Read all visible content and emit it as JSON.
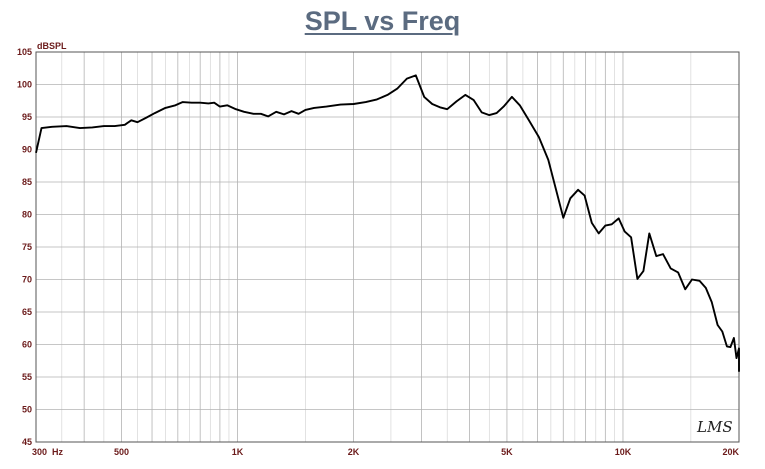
{
  "chart_data": {
    "type": "line",
    "title": "SPL vs Freq",
    "ylabel": "dBSPL",
    "xlabel": "",
    "x_scale": "log",
    "xlim": [
      300,
      20000
    ],
    "ylim": [
      45,
      105
    ],
    "grid": true,
    "x_tick_labels": [
      {
        "value": 300,
        "label": "300"
      },
      {
        "value": 500,
        "label": "500"
      },
      {
        "value": 1000,
        "label": "1K"
      },
      {
        "value": 2000,
        "label": "2K"
      },
      {
        "value": 5000,
        "label": "5K"
      },
      {
        "value": 10000,
        "label": "10K"
      },
      {
        "value": 20000,
        "label": "20K"
      }
    ],
    "x_unit": "Hz",
    "y_ticks": [
      45,
      50,
      55,
      60,
      65,
      70,
      75,
      80,
      85,
      90,
      95,
      100,
      105
    ],
    "watermark": "LMS",
    "colors": {
      "line": "#000000",
      "title": "#5b6b80",
      "tick_text": "#6b1a1a",
      "grid": "#b3b3b3",
      "frame": "#555555"
    },
    "series": [
      {
        "name": "",
        "points": [
          [
            300,
            89.5
          ],
          [
            310,
            93.3
          ],
          [
            330,
            93.5
          ],
          [
            360,
            93.6
          ],
          [
            390,
            93.3
          ],
          [
            420,
            93.4
          ],
          [
            450,
            93.6
          ],
          [
            480,
            93.6
          ],
          [
            510,
            93.8
          ],
          [
            530,
            94.5
          ],
          [
            550,
            94.2
          ],
          [
            580,
            94.9
          ],
          [
            610,
            95.6
          ],
          [
            650,
            96.4
          ],
          [
            690,
            96.8
          ],
          [
            720,
            97.3
          ],
          [
            760,
            97.2
          ],
          [
            800,
            97.2
          ],
          [
            840,
            97.1
          ],
          [
            870,
            97.2
          ],
          [
            900,
            96.6
          ],
          [
            940,
            96.8
          ],
          [
            990,
            96.2
          ],
          [
            1040,
            95.8
          ],
          [
            1100,
            95.5
          ],
          [
            1150,
            95.5
          ],
          [
            1200,
            95.1
          ],
          [
            1260,
            95.8
          ],
          [
            1320,
            95.4
          ],
          [
            1380,
            95.9
          ],
          [
            1440,
            95.5
          ],
          [
            1500,
            96.1
          ],
          [
            1580,
            96.4
          ],
          [
            1700,
            96.6
          ],
          [
            1850,
            96.9
          ],
          [
            2000,
            97.0
          ],
          [
            2150,
            97.3
          ],
          [
            2300,
            97.7
          ],
          [
            2450,
            98.4
          ],
          [
            2600,
            99.4
          ],
          [
            2750,
            100.9
          ],
          [
            2900,
            101.4
          ],
          [
            3050,
            98.1
          ],
          [
            3200,
            97.0
          ],
          [
            3350,
            96.5
          ],
          [
            3500,
            96.2
          ],
          [
            3700,
            97.4
          ],
          [
            3900,
            98.4
          ],
          [
            4100,
            97.6
          ],
          [
            4300,
            95.7
          ],
          [
            4500,
            95.3
          ],
          [
            4700,
            95.6
          ],
          [
            4900,
            96.6
          ],
          [
            5150,
            98.1
          ],
          [
            5400,
            96.8
          ],
          [
            5700,
            94.5
          ],
          [
            6050,
            91.9
          ],
          [
            6400,
            88.4
          ],
          [
            6700,
            83.9
          ],
          [
            7000,
            79.5
          ],
          [
            7300,
            82.5
          ],
          [
            7650,
            83.8
          ],
          [
            7950,
            82.9
          ],
          [
            8300,
            78.7
          ],
          [
            8650,
            77.1
          ],
          [
            9000,
            78.3
          ],
          [
            9350,
            78.5
          ],
          [
            9750,
            79.4
          ],
          [
            10100,
            77.4
          ],
          [
            10500,
            76.5
          ],
          [
            10900,
            70.1
          ],
          [
            11300,
            71.3
          ],
          [
            11700,
            77.1
          ],
          [
            12200,
            73.6
          ],
          [
            12700,
            73.9
          ],
          [
            13300,
            71.7
          ],
          [
            13900,
            71.1
          ],
          [
            14500,
            68.5
          ],
          [
            15100,
            70.0
          ],
          [
            15800,
            69.8
          ],
          [
            16400,
            68.7
          ],
          [
            17000,
            66.5
          ],
          [
            17600,
            63.0
          ],
          [
            18100,
            62.0
          ],
          [
            18600,
            59.7
          ],
          [
            19000,
            59.6
          ],
          [
            19400,
            61.0
          ],
          [
            19700,
            57.9
          ],
          [
            20100,
            59.4
          ],
          [
            20400,
            55.8
          ]
        ]
      }
    ]
  }
}
